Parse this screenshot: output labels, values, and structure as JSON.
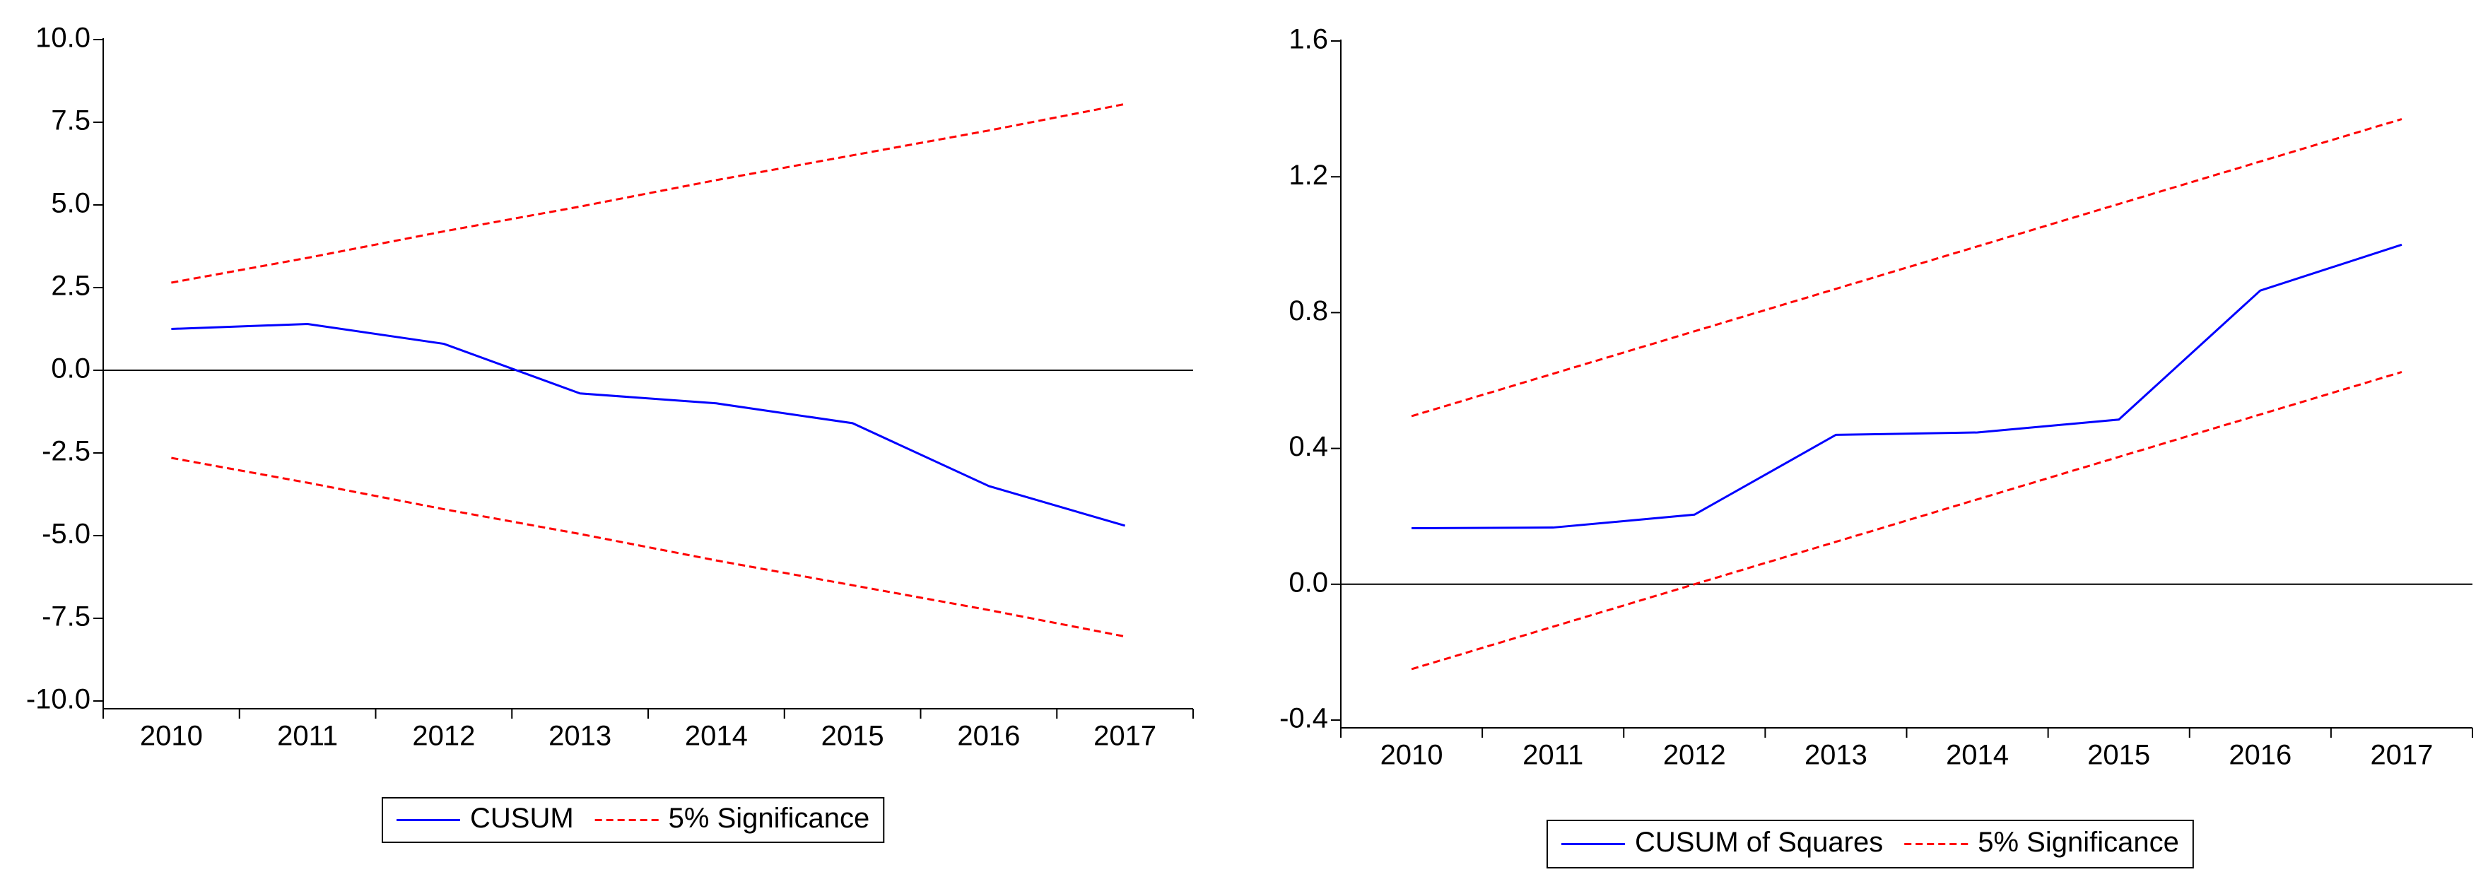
{
  "chart_data": [
    {
      "type": "line",
      "categories": [
        "2010",
        "2011",
        "2012",
        "2013",
        "2014",
        "2015",
        "2016",
        "2017"
      ],
      "series": [
        {
          "name": "CUSUM",
          "color": "#0000ff",
          "style": "solid",
          "values": [
            1.25,
            1.4,
            0.8,
            -0.7,
            -1.0,
            -1.6,
            -3.5,
            -4.7
          ]
        },
        {
          "name": "5% Significance",
          "color": "#ff0000",
          "style": "dashed",
          "upper": [
            2.65,
            3.4,
            4.2,
            4.95,
            5.75,
            6.5,
            7.25,
            8.05
          ],
          "lower": [
            -2.65,
            -3.4,
            -4.2,
            -4.95,
            -5.75,
            -6.5,
            -7.25,
            -8.05
          ]
        }
      ],
      "ylim": [
        -10,
        10
      ],
      "yticks": [
        {
          "value": -10,
          "label": "-10.0"
        },
        -7.5,
        {
          "value": -5,
          "label": "-5.0"
        },
        -2.5,
        {
          "value": 0,
          "label": "0.0"
        },
        2.5,
        {
          "value": 5,
          "label": "5.0"
        },
        7.5,
        {
          "value": 10,
          "label": "10.0"
        }
      ],
      "zero_line": true
    },
    {
      "type": "line",
      "categories": [
        "2010",
        "2011",
        "2012",
        "2013",
        "2014",
        "2015",
        "2016",
        "2017"
      ],
      "series": [
        {
          "name": "CUSUM of Squares",
          "color": "#0000ff",
          "style": "solid",
          "values": [
            0.165,
            0.167,
            0.205,
            0.44,
            0.447,
            0.485,
            0.865,
            1.0
          ]
        },
        {
          "name": "5% Significance",
          "color": "#ff0000",
          "style": "dashed",
          "upper": [
            0.495,
            0.62,
            0.745,
            0.87,
            0.995,
            1.12,
            1.245,
            1.37
          ],
          "lower": [
            -0.25,
            -0.125,
            0.0,
            0.125,
            0.25,
            0.375,
            0.5,
            0.625
          ]
        }
      ],
      "ylim": [
        -0.4,
        1.6
      ],
      "yticks": [
        -0.4,
        {
          "value": 0,
          "label": "0.0"
        },
        0.4,
        0.8,
        1.2,
        1.6
      ],
      "zero_line": true
    }
  ]
}
